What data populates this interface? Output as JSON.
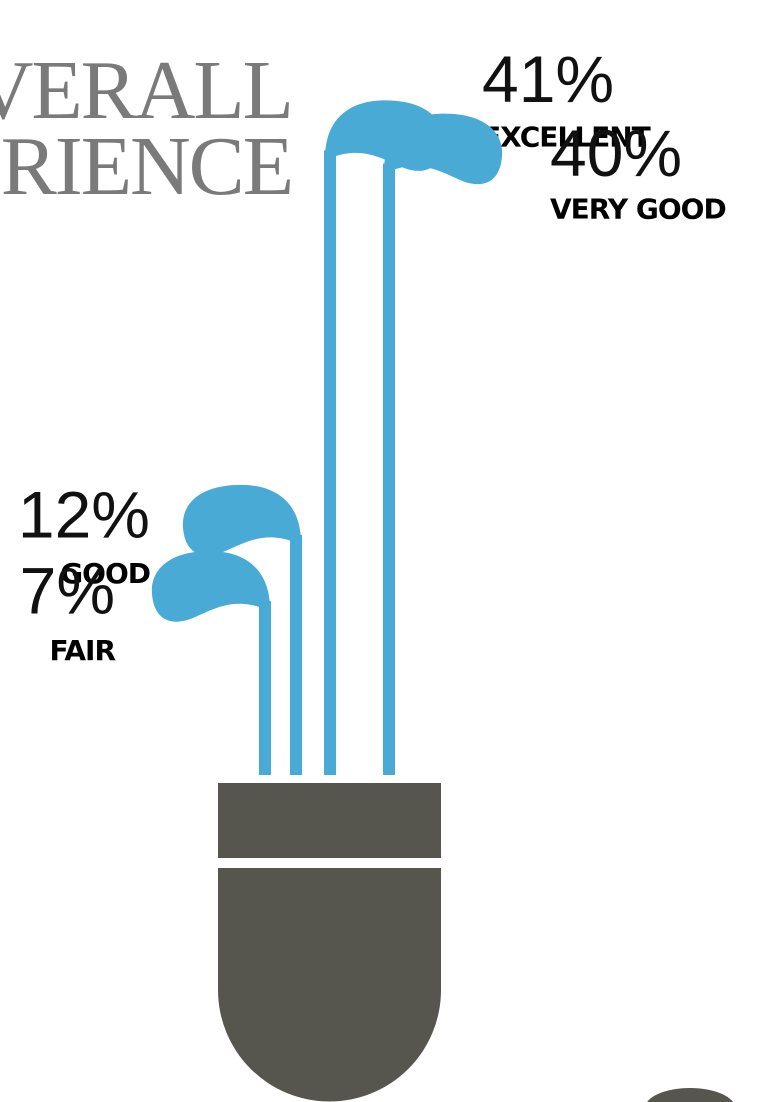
{
  "chart_data": {
    "type": "bar",
    "title_lines": [
      "VERALL",
      "RIENCE"
    ],
    "categories": [
      "EXCELLENT",
      "VERY GOOD",
      "GOOD",
      "FAIR"
    ],
    "values": [
      41,
      40,
      12,
      7
    ],
    "value_labels": [
      "41%",
      "40%",
      "12%",
      "7%"
    ],
    "color": "#48aad5"
  }
}
